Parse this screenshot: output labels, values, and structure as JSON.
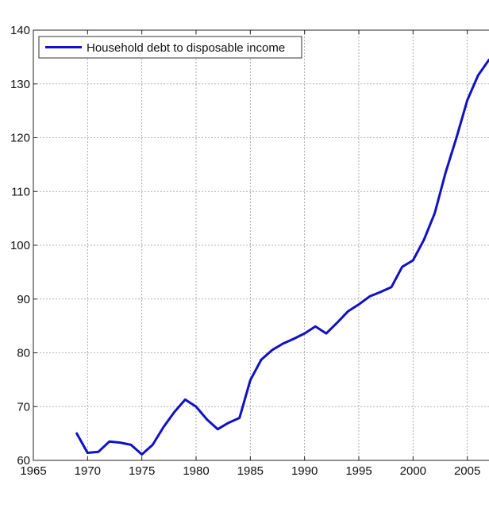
{
  "chart_data": {
    "type": "line",
    "title": "",
    "xlabel": "",
    "ylabel": "",
    "xlim": [
      1965,
      2007
    ],
    "ylim": [
      60,
      140
    ],
    "xticks": [
      1965,
      1970,
      1975,
      1980,
      1985,
      1990,
      1995,
      2000,
      2005
    ],
    "yticks": [
      60,
      70,
      80,
      90,
      100,
      110,
      120,
      130,
      140
    ],
    "grid": true,
    "legend_position": "top-left",
    "series": [
      {
        "name": "Household debt to disposable income",
        "color": "#1010c8",
        "x": [
          1969,
          1970,
          1971,
          1972,
          1973,
          1974,
          1975,
          1976,
          1977,
          1978,
          1979,
          1980,
          1981,
          1982,
          1983,
          1984,
          1985,
          1986,
          1987,
          1988,
          1989,
          1990,
          1991,
          1992,
          1993,
          1994,
          1995,
          1996,
          1997,
          1998,
          1999,
          2000,
          2001,
          2002,
          2003,
          2004,
          2005,
          2006,
          2007
        ],
        "y": [
          65.0,
          61.4,
          61.6,
          63.5,
          63.3,
          62.9,
          61.1,
          62.9,
          66.2,
          69.0,
          71.3,
          70.0,
          67.6,
          65.8,
          67.0,
          67.9,
          74.9,
          78.7,
          80.5,
          81.7,
          82.6,
          83.6,
          84.9,
          83.6,
          85.6,
          87.7,
          89.0,
          90.5,
          91.3,
          92.2,
          96.0,
          97.2,
          101.0,
          106.0,
          113.5,
          120.0,
          127.0,
          131.6,
          134.5
        ]
      }
    ]
  }
}
